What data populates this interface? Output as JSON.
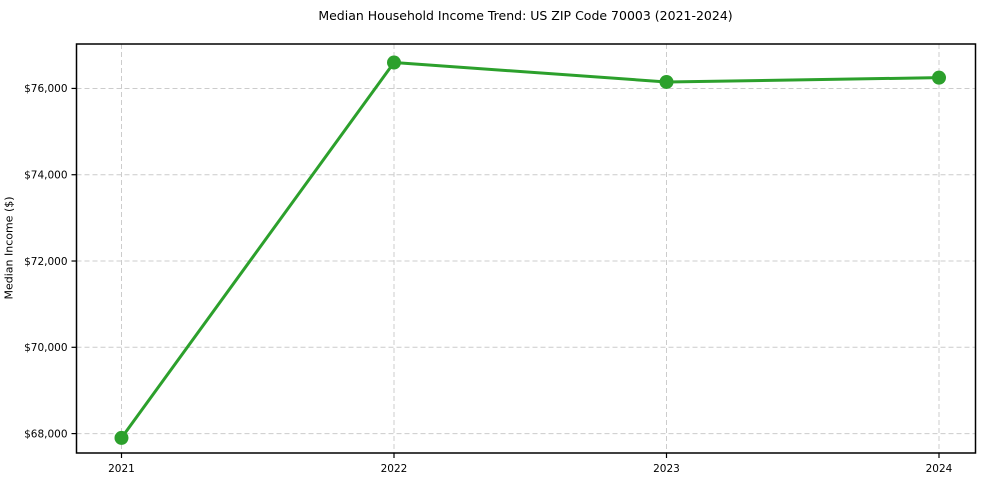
{
  "chart_data": {
    "type": "line",
    "title": "Median Household Income Trend: US ZIP Code 70003 (2021-2024)",
    "xlabel": "",
    "ylabel": "Median Income ($)",
    "categories": [
      "2021",
      "2022",
      "2023",
      "2024"
    ],
    "series": [
      {
        "name": "Median Household Income",
        "values": [
          67900,
          76600,
          76150,
          76250
        ]
      }
    ],
    "y_ticks": [
      68000,
      70000,
      72000,
      74000,
      76000
    ],
    "y_tick_labels": [
      "$68,000",
      "$70,000",
      "$72,000",
      "$74,000",
      "$76,000"
    ],
    "ylim": [
      67550,
      77030
    ],
    "grid": "dashed-both",
    "legend": "none",
    "line_color": "#2ca02c",
    "marker": "circle",
    "grid_color": "#cccccc",
    "spine_color": "#000000",
    "text_color": "#000000"
  }
}
